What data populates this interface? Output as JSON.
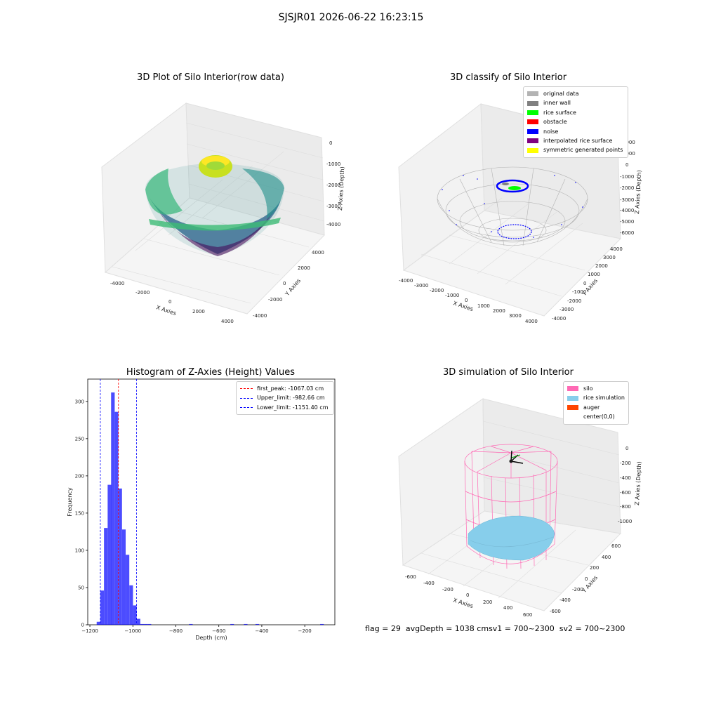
{
  "figure": {
    "suptitle": "SJSJR01 2026-06-22 16:23:15"
  },
  "panels": {
    "p1": {
      "title": "3D Plot of Silo Interior(row data)",
      "xlabel": "X Axies",
      "ylabel": "Y Axies",
      "zlabel": "Z Axies (Depth)",
      "xticks": [
        "-4000",
        "-2000",
        "0",
        "2000",
        "4000"
      ],
      "yticks": [
        "-4000",
        "-2000",
        "0",
        "2000",
        "4000"
      ],
      "zticks": [
        "0",
        "-1000",
        "-2000",
        "-3000",
        "-4000"
      ]
    },
    "p2": {
      "title": "3D classify of Silo Interior",
      "xlabel": "X Axies",
      "ylabel": "Y Axies",
      "zlabel": "Z Axies (Depth)",
      "xticks": [
        "-4000",
        "-3000",
        "-2000",
        "-1000",
        "0",
        "1000",
        "2000",
        "3000",
        "4000"
      ],
      "yticks": [
        "-4000",
        "-3000",
        "-2000",
        "-1000",
        "0",
        "1000",
        "2000",
        "3000",
        "4000"
      ],
      "zticks": [
        "2000",
        "1000",
        "0",
        "-1000",
        "-2000",
        "-3000",
        "-4000",
        "-5000",
        "-6000"
      ],
      "legend": [
        {
          "label": "original data",
          "color": "#b3b3b3"
        },
        {
          "label": "inner wall",
          "color": "#808080"
        },
        {
          "label": "rice surface",
          "color": "#00ff00"
        },
        {
          "label": "obstacle",
          "color": "#ff0000"
        },
        {
          "label": "noise",
          "color": "#0000ff"
        },
        {
          "label": "interpolated rice surface",
          "color": "#800080"
        },
        {
          "label": "symmetric generated points",
          "color": "#ffff00"
        }
      ]
    },
    "p4": {
      "title": "3D simulation of Silo Interior",
      "xlabel": "X Axies",
      "ylabel": "Y Axies",
      "zlabel": "Z Axies (Depth)",
      "xticks": [
        "-600",
        "-400",
        "-200",
        "0",
        "200",
        "400",
        "600"
      ],
      "yticks": [
        "-600",
        "-400",
        "-200",
        "0",
        "200",
        "400",
        "600"
      ],
      "zticks": [
        "0",
        "-200",
        "-400",
        "-600",
        "-800",
        "-1000"
      ],
      "legend": [
        {
          "label": "silo",
          "color": "#ff69b4"
        },
        {
          "label": "rice simulation",
          "color": "#87ceeb"
        },
        {
          "label": "auger",
          "color": "#ff4500"
        },
        {
          "label": "center(0,0)",
          "color": "#ffffff"
        }
      ]
    }
  },
  "chart_data": [
    {
      "type": "bar",
      "title": "Histogram of Z-Axies (Height) Values",
      "xlabel": "Depth (cm)",
      "ylabel": "Frequency",
      "xlim": [
        -1210,
        -60
      ],
      "ylim": [
        0,
        330
      ],
      "xticks": [
        -1200,
        -1000,
        -800,
        -600,
        -400,
        -200
      ],
      "xtick_labels": [
        "−1200",
        "−1000",
        "−800",
        "−600",
        "−400",
        "−200"
      ],
      "yticks": [
        0,
        50,
        100,
        150,
        200,
        250,
        300
      ],
      "bin_width": 16.8,
      "bins": [
        {
          "x": -1160,
          "value": 4
        },
        {
          "x": -1143,
          "value": 46
        },
        {
          "x": -1126,
          "value": 130
        },
        {
          "x": -1109,
          "value": 188
        },
        {
          "x": -1093,
          "value": 312
        },
        {
          "x": -1076,
          "value": 286
        },
        {
          "x": -1059,
          "value": 183
        },
        {
          "x": -1042,
          "value": 128
        },
        {
          "x": -1025,
          "value": 94
        },
        {
          "x": -1008,
          "value": 53
        },
        {
          "x": -991,
          "value": 26
        },
        {
          "x": -974,
          "value": 8
        },
        {
          "x": -957,
          "value": 1
        },
        {
          "x": -940,
          "value": 1
        },
        {
          "x": -923,
          "value": 1
        },
        {
          "x": -730,
          "value": 1
        },
        {
          "x": -538,
          "value": 1
        },
        {
          "x": -475,
          "value": 1
        },
        {
          "x": -421,
          "value": 1
        },
        {
          "x": -120,
          "value": 1
        }
      ],
      "bar_color": "#0000ff",
      "vlines": [
        {
          "label": "first_peak: -1067.03 cm",
          "x": -1067.03,
          "color": "#ff0000"
        },
        {
          "label": "Upper_limit: -982.66 cm",
          "x": -982.66,
          "color": "#0000ff"
        },
        {
          "label": "Lower_limit: -1151.40 cm",
          "x": -1151.4,
          "color": "#0000ff"
        }
      ],
      "legend_position": "top-right"
    }
  ],
  "footer": {
    "flag": "flag = 29",
    "avg": "avgDepth = 1038 cm",
    "sv1": "sv1 = 700~2300",
    "sv2": "sv2 = 700~2300"
  }
}
